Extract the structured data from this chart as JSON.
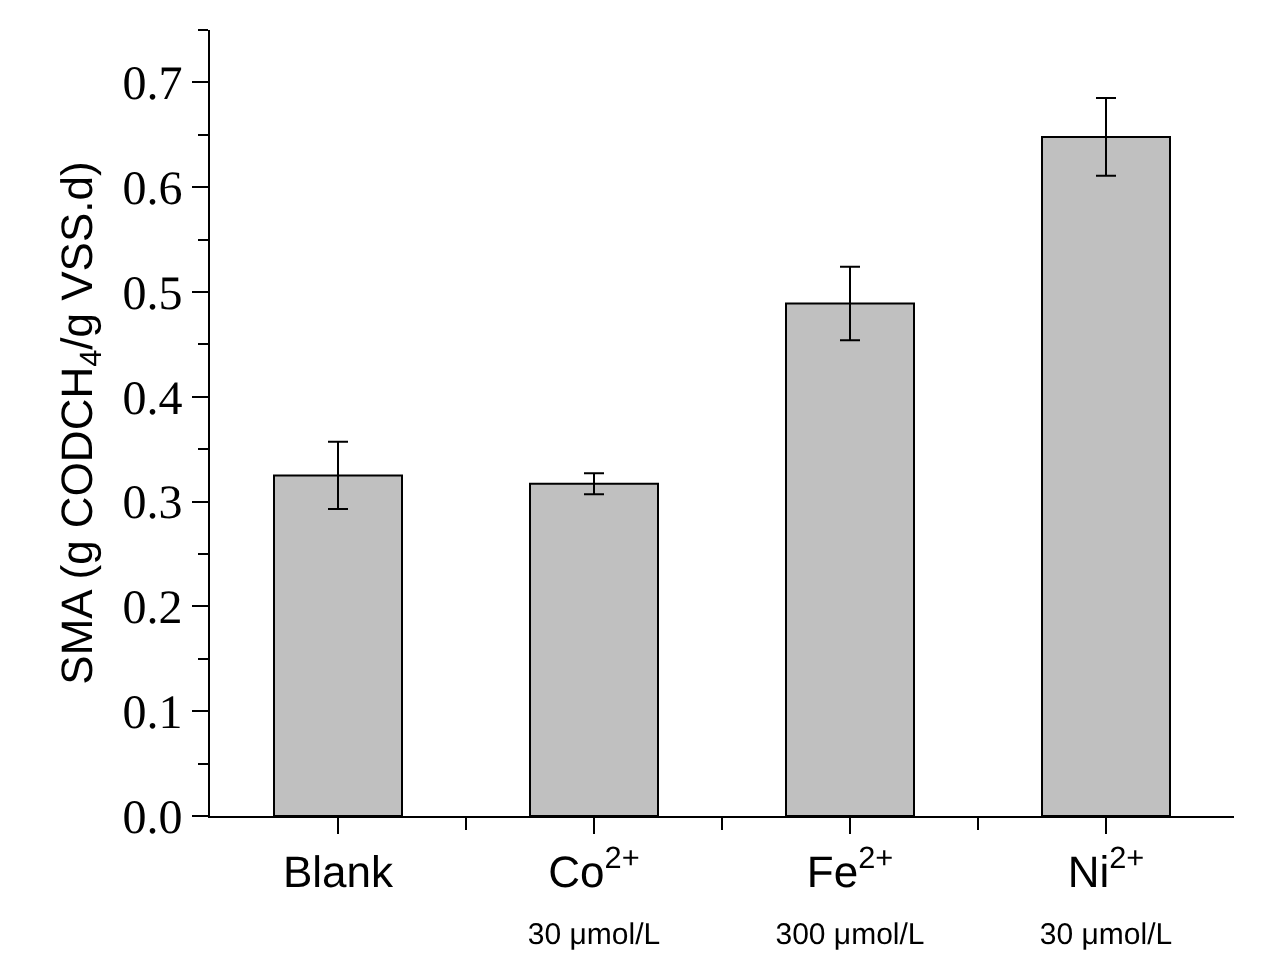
{
  "chart_data": {
    "type": "bar",
    "categories": [
      "Blank",
      "Co$^{2+}$\n30 μmol/L",
      "Fe$^{2+}$\n300 μmol/L",
      "Ni$^{2+}$\n30 μmol/L"
    ],
    "values": [
      0.325,
      0.317,
      0.489,
      0.648
    ],
    "errors": [
      0.032,
      0.01,
      0.035,
      0.037
    ],
    "color": "#c0c0c0",
    "ylabel": "SMA (g CODCH$_{4}$/g VSS.d)",
    "ylim": [
      0,
      0.75
    ],
    "yticks": [
      "0.0",
      0.1,
      0.2,
      0.3,
      0.4,
      0.5,
      0.6,
      0.7
    ]
  }
}
